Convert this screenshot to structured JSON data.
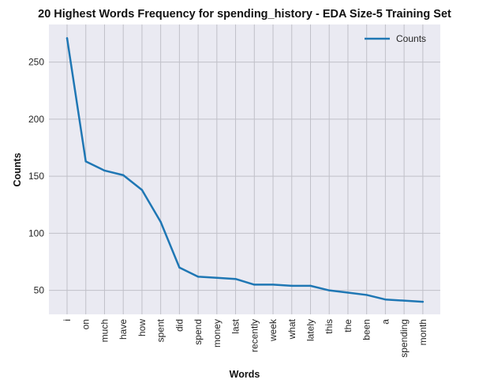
{
  "chart_data": {
    "type": "line",
    "title": "20 Highest Words Frequency for spending_history - EDA Size-5 Training Set",
    "xlabel": "Words",
    "ylabel": "Counts",
    "categories": [
      "i",
      "on",
      "much",
      "have",
      "how",
      "spent",
      "did",
      "spend",
      "money",
      "last",
      "recently",
      "week",
      "what",
      "lately",
      "this",
      "the",
      "been",
      "a",
      "spending",
      "month"
    ],
    "series": [
      {
        "name": "Counts",
        "values": [
          271,
          163,
          155,
          151,
          138,
          110,
          70,
          62,
          61,
          60,
          55,
          55,
          54,
          54,
          50,
          48,
          46,
          42,
          41,
          40
        ]
      }
    ],
    "yticks": [
      50,
      100,
      150,
      200,
      250
    ],
    "ylim": [
      29,
      283
    ],
    "grid": true,
    "legend_position": "top-right",
    "colors": {
      "line": "#1f77b4",
      "background": "#eaeaf2",
      "grid": "#c0c0c8"
    }
  }
}
